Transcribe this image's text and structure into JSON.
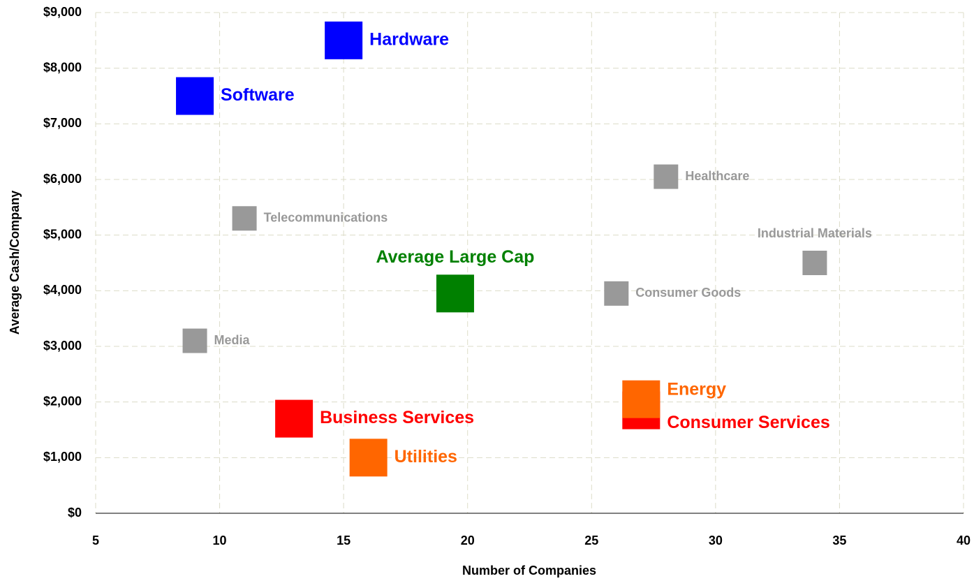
{
  "chart_data": {
    "type": "scatter",
    "x_label": "Number of Companies",
    "y_label": "Average Cash/Company",
    "xlim": [
      5,
      40
    ],
    "xticks": [
      5,
      10,
      15,
      20,
      25,
      30,
      35,
      40
    ],
    "ylim": [
      0,
      9000
    ],
    "yticks": [
      {
        "value": 0,
        "label": "$0"
      },
      {
        "value": 1000,
        "label": "$1,000"
      },
      {
        "value": 2000,
        "label": "$2,000"
      },
      {
        "value": 3000,
        "label": "$3,000"
      },
      {
        "value": 4000,
        "label": "$4,000"
      },
      {
        "value": 5000,
        "label": "$5,000"
      },
      {
        "value": 6000,
        "label": "$6,000"
      },
      {
        "value": 7000,
        "label": "$7,000"
      },
      {
        "value": 8000,
        "label": "$8,000"
      },
      {
        "value": 9000,
        "label": "$9,000"
      }
    ],
    "grid": true,
    "points": [
      {
        "name": "Hardware",
        "x": 15,
        "y": 8500,
        "color": "#0000ff",
        "marker": "large",
        "label_position": "right"
      },
      {
        "name": "Software",
        "x": 9,
        "y": 7500,
        "color": "#0000ff",
        "marker": "large",
        "label_position": "right"
      },
      {
        "name": "Healthcare",
        "x": 28,
        "y": 6050,
        "color": "#999999",
        "marker": "small",
        "label_position": "right"
      },
      {
        "name": "Telecommunications",
        "x": 11,
        "y": 5300,
        "color": "#999999",
        "marker": "small",
        "label_position": "right"
      },
      {
        "name": "Industrial Materials",
        "x": 34,
        "y": 4500,
        "color": "#999999",
        "marker": "small",
        "label_position": "above"
      },
      {
        "name": "Average Large Cap",
        "x": 19.5,
        "y": 3950,
        "color": "#008000",
        "marker": "large",
        "label_position": "above"
      },
      {
        "name": "Consumer Goods",
        "x": 26,
        "y": 3950,
        "color": "#999999",
        "marker": "small",
        "label_position": "right"
      },
      {
        "name": "Media",
        "x": 9,
        "y": 3100,
        "color": "#999999",
        "marker": "small",
        "label_position": "right"
      },
      {
        "name": "Consumer Services",
        "x": 27,
        "y": 1850,
        "color": "#ff0000",
        "marker": "large",
        "label_position": "lower-right"
      },
      {
        "name": "Energy",
        "x": 27,
        "y": 2050,
        "color": "#ff6600",
        "marker": "large",
        "label_position": "upper-right"
      },
      {
        "name": "Business Services",
        "x": 13,
        "y": 1700,
        "color": "#ff0000",
        "marker": "large",
        "label_position": "right"
      },
      {
        "name": "Utilities",
        "x": 16,
        "y": 1000,
        "color": "#ff6600",
        "marker": "large",
        "label_position": "right"
      }
    ]
  }
}
